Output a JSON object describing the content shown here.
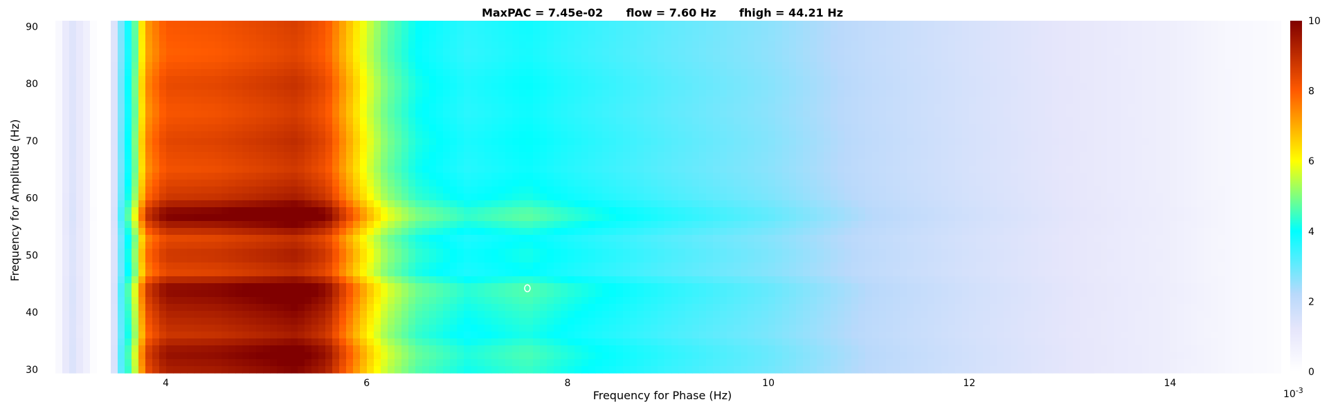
{
  "chart_data": {
    "type": "heatmap",
    "title": "MaxPAC = 7.45e-02      flow = 7.60 Hz      fhigh = 44.21 Hz",
    "xlabel": "Frequency for Phase (Hz)",
    "ylabel": "Frequency for Amplitude (Hz)",
    "xlim": [
      2.9,
      15.1
    ],
    "ylim": [
      29.4,
      91.0
    ],
    "x_ticks": [
      4,
      6,
      8,
      10,
      12,
      14
    ],
    "y_ticks": [
      30,
      40,
      50,
      60,
      70,
      80,
      90
    ],
    "colorbar": {
      "colormap": "jet-with-white-low",
      "range": [
        0,
        10
      ],
      "ticks": [
        0,
        2,
        4,
        6,
        8,
        10
      ],
      "exponent_label": "10-3"
    },
    "max_marker": {
      "x": 7.6,
      "y": 44.21
    },
    "grid": false,
    "x_profile_note_units": "PAC x 1e-3",
    "x_profile": [
      [
        2.9,
        0
      ],
      [
        3.05,
        1.5
      ],
      [
        3.2,
        0.8
      ],
      [
        3.3,
        0
      ],
      [
        3.45,
        0
      ],
      [
        3.5,
        2.0
      ],
      [
        3.6,
        3.8
      ],
      [
        3.7,
        5.3
      ],
      [
        3.8,
        7.8
      ],
      [
        4.0,
        8.8
      ],
      [
        4.5,
        8.9
      ],
      [
        5.0,
        9.2
      ],
      [
        5.3,
        9.4
      ],
      [
        5.6,
        8.8
      ],
      [
        5.8,
        7.5
      ],
      [
        6.0,
        6.2
      ],
      [
        6.2,
        5.2
      ],
      [
        6.5,
        4.4
      ],
      [
        7.0,
        3.9
      ],
      [
        7.6,
        4.2
      ],
      [
        8.0,
        3.9
      ],
      [
        9.0,
        3.3
      ],
      [
        10.0,
        2.8
      ],
      [
        11.0,
        2.1
      ],
      [
        12.0,
        1.6
      ],
      [
        13.0,
        1.2
      ],
      [
        14.0,
        0.8
      ],
      [
        14.6,
        0.4
      ],
      [
        15.1,
        0.2
      ]
    ],
    "y_profile": [
      [
        29.4,
        1.05
      ],
      [
        33,
        1.1
      ],
      [
        36,
        1.0
      ],
      [
        40,
        1.05
      ],
      [
        44.2,
        1.12
      ],
      [
        47,
        0.95
      ],
      [
        50,
        1.0
      ],
      [
        53,
        0.95
      ],
      [
        57,
        1.15
      ],
      [
        60,
        1.0
      ],
      [
        65,
        0.93
      ],
      [
        70,
        0.96
      ],
      [
        75,
        0.92
      ],
      [
        80,
        0.95
      ],
      [
        85,
        0.9
      ],
      [
        91,
        0.92
      ]
    ]
  }
}
